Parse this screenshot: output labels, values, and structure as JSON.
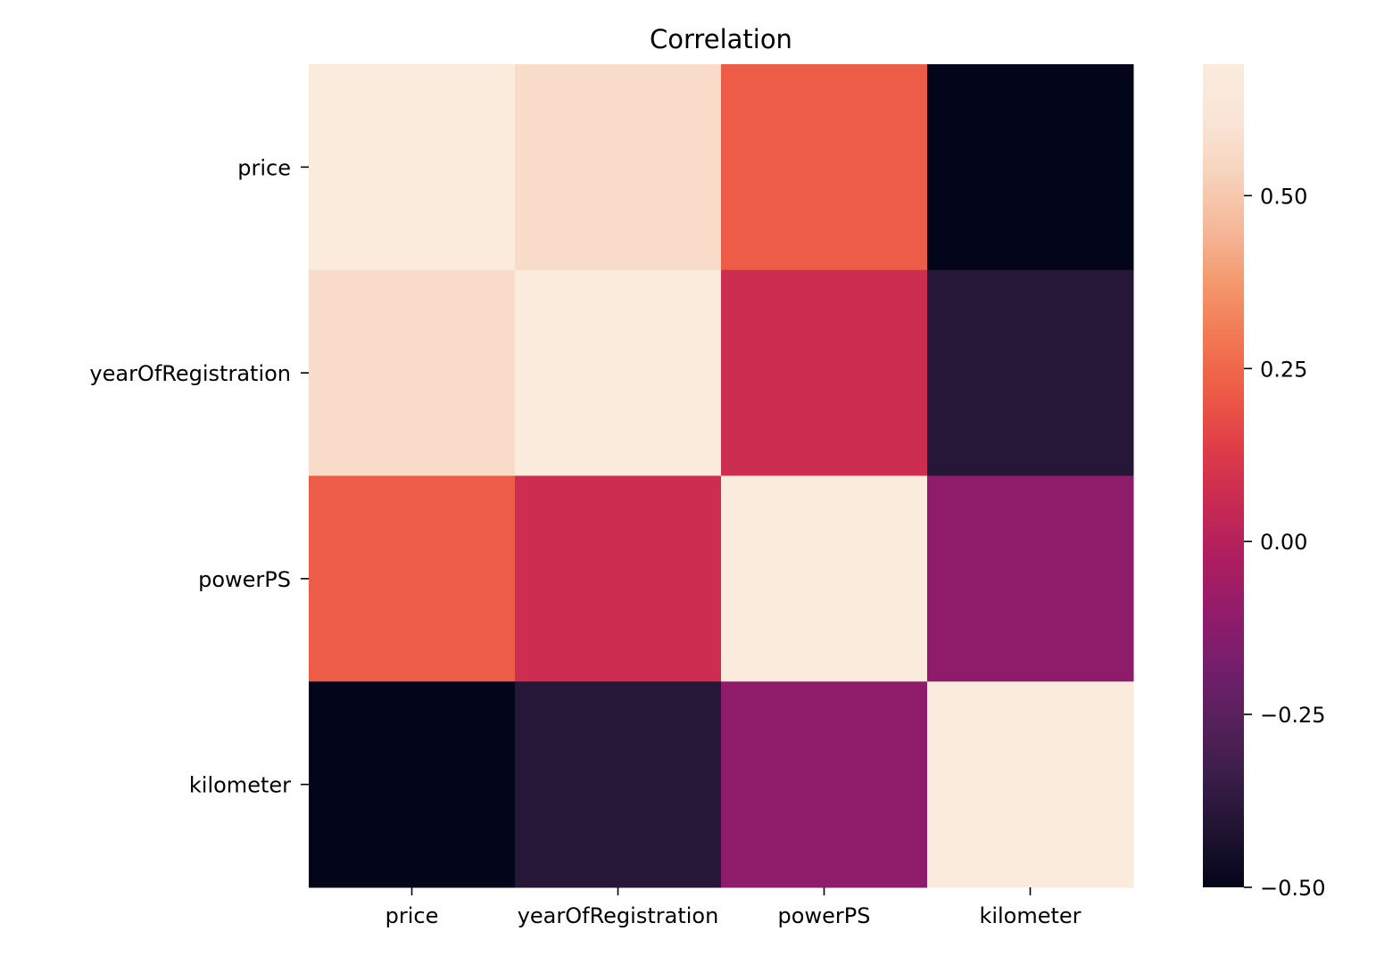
{
  "chart_data": {
    "type": "heatmap",
    "title": "Correlation",
    "x_categories": [
      "price",
      "yearOfRegistration",
      "powerPS",
      "kilometer"
    ],
    "y_categories": [
      "price",
      "yearOfRegistration",
      "powerPS",
      "kilometer"
    ],
    "values": [
      [
        1.0,
        0.57,
        0.22,
        -0.5
      ],
      [
        0.57,
        1.0,
        0.07,
        -0.4
      ],
      [
        0.22,
        0.07,
        1.0,
        -0.11
      ],
      [
        -0.5,
        -0.4,
        -0.11,
        1.0
      ]
    ],
    "colorbar": {
      "vmin": -0.5,
      "vmax": 0.69,
      "ticks": [
        -0.5,
        -0.25,
        0.0,
        0.25,
        0.5
      ],
      "tick_labels": [
        "−0.50",
        "−0.25",
        "0.00",
        "0.25",
        "0.50"
      ],
      "colormap": "rocket",
      "colors": [
        "#03051a",
        "#1f1331",
        "#3a1d48",
        "#56215b",
        "#741e6b",
        "#921c6b",
        "#ae1d5f",
        "#c82a53",
        "#df3c48",
        "#ed5a45",
        "#f27752",
        "#f4986d",
        "#f5b799",
        "#f7d3bb",
        "#f9e5d8",
        "#faebdd"
      ]
    },
    "xlabel": "",
    "ylabel": "",
    "grid": false
  }
}
